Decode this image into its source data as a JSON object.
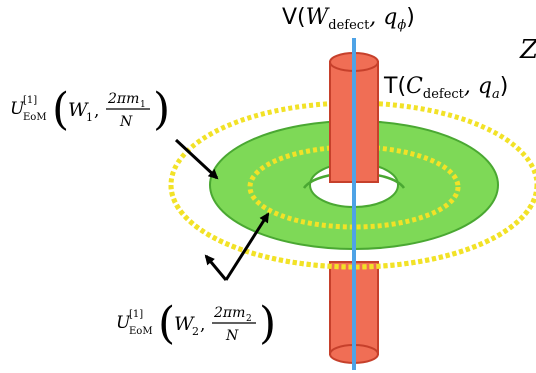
{
  "labels": {
    "top_prefix": "V(",
    "top_W": "W",
    "top_sub": "defect",
    "top_q": ", q",
    "top_q_sub": "ϕ",
    "top_suffix": ")",
    "right_prefix": "T(",
    "right_C": "C",
    "right_sub": "defect",
    "right_q": ", q",
    "right_q_sub": "a",
    "right_suffix": ")",
    "corner_glyph": "Z",
    "op1_U": "U",
    "op1_sup": "[1]",
    "op1_sub": "EoM",
    "op1_W": "W",
    "op1_W_sub": "1",
    "op1_num": "2πm",
    "op1_num_sub": "1",
    "op1_den": "N",
    "op2_U": "U",
    "op2_sup": "[1]",
    "op2_sub": "EoM",
    "op2_W": "W",
    "op2_W_sub": "2",
    "op2_num": "2πm",
    "op2_num_sub": "2",
    "op2_den": "N"
  },
  "colors": {
    "cylinder_fill": "#f06e55",
    "cylinder_stroke": "#c6402b",
    "line": "#4ea3e6",
    "torus_fill": "#7ed957",
    "torus_stroke": "#4aa832",
    "dotted": "#f2e227",
    "arrow": "#000000"
  }
}
